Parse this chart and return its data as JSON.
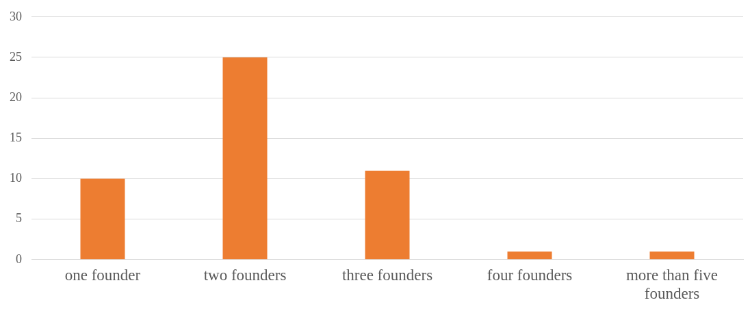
{
  "chart_data": {
    "type": "bar",
    "categories": [
      "one founder",
      "two founders",
      "three founders",
      "four founders",
      "more than five founders"
    ],
    "values": [
      10,
      25,
      11,
      1,
      1
    ],
    "color": "#ed7d31",
    "ylim": [
      0,
      30
    ],
    "yticks": [
      0,
      5,
      10,
      15,
      20,
      25,
      30
    ],
    "grid": "y"
  }
}
